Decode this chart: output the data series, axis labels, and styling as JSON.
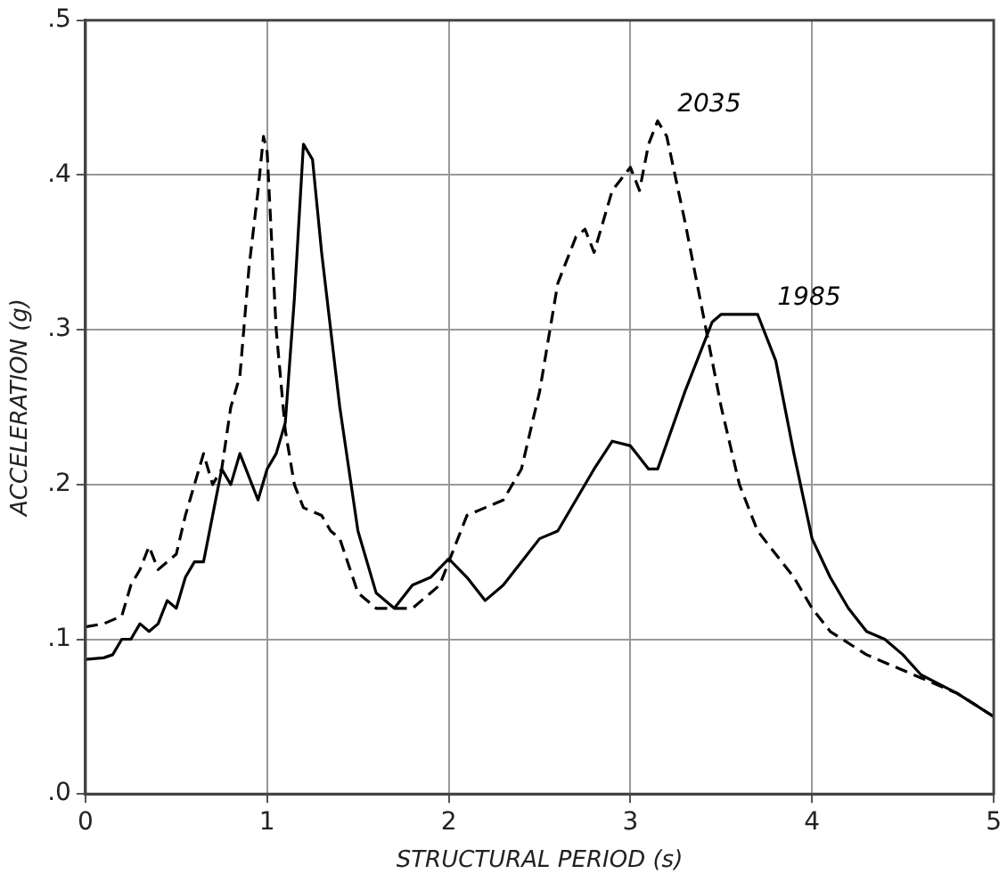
{
  "chart_data": {
    "type": "line",
    "xlabel": "STRUCTURAL PERIOD (s)",
    "ylabel": "ACCELERATION (g)",
    "xlim": [
      0,
      5
    ],
    "xticks": [
      0,
      1,
      2,
      3,
      4,
      5
    ],
    "ylim": [
      0,
      0.5
    ],
    "yticks": [
      {
        "value": 0,
        "label": ".0"
      },
      {
        "value": 0.1,
        "label": ".1"
      },
      {
        "value": 0.2,
        "label": ".2"
      },
      {
        "value": 0.3,
        "label": ".3"
      },
      {
        "value": 0.4,
        "label": ".4"
      },
      {
        "value": 0.5,
        "label": ".5"
      }
    ],
    "grid": true,
    "legend": false,
    "marker": "none",
    "series": [
      {
        "color": "#000000",
        "line_style": "solid",
        "x": [
          0,
          0.1,
          0.15,
          0.2,
          0.25,
          0.3,
          0.35,
          0.4,
          0.45,
          0.5,
          0.55,
          0.6,
          0.65,
          0.7,
          0.75,
          0.8,
          0.85,
          0.9,
          0.95,
          1.0,
          1.05,
          1.1,
          1.15,
          1.2,
          1.25,
          1.3,
          1.4,
          1.5,
          1.6,
          1.7,
          1.8,
          1.9,
          2.0,
          2.1,
          2.2,
          2.3,
          2.4,
          2.5,
          2.6,
          2.7,
          2.8,
          2.9,
          3.0,
          3.1,
          3.15,
          3.3,
          3.45,
          3.5,
          3.6,
          3.7,
          3.8,
          3.9,
          4.0,
          4.1,
          4.2,
          4.3,
          4.4,
          4.5,
          4.6,
          4.8,
          5.0
        ],
        "values": [
          0.087,
          0.088,
          0.09,
          0.1,
          0.1,
          0.11,
          0.105,
          0.11,
          0.125,
          0.12,
          0.14,
          0.15,
          0.15,
          0.18,
          0.21,
          0.2,
          0.22,
          0.205,
          0.19,
          0.21,
          0.22,
          0.24,
          0.32,
          0.42,
          0.41,
          0.35,
          0.25,
          0.17,
          0.13,
          0.12,
          0.135,
          0.14,
          0.152,
          0.14,
          0.125,
          0.135,
          0.15,
          0.165,
          0.17,
          0.19,
          0.21,
          0.228,
          0.225,
          0.21,
          0.21,
          0.26,
          0.305,
          0.31,
          0.31,
          0.31,
          0.28,
          0.22,
          0.165,
          0.14,
          0.12,
          0.105,
          0.1,
          0.09,
          0.077,
          0.065,
          0.05
        ]
      },
      {
        "color": "#000000",
        "line_style": "dashed",
        "x": [
          0,
          0.1,
          0.2,
          0.25,
          0.3,
          0.35,
          0.4,
          0.45,
          0.5,
          0.55,
          0.6,
          0.65,
          0.7,
          0.75,
          0.8,
          0.85,
          0.9,
          0.95,
          0.98,
          1.0,
          1.05,
          1.1,
          1.15,
          1.2,
          1.3,
          1.35,
          1.4,
          1.5,
          1.6,
          1.7,
          1.8,
          1.9,
          1.95,
          2.0,
          2.1,
          2.2,
          2.3,
          2.4,
          2.5,
          2.6,
          2.7,
          2.75,
          2.8,
          2.9,
          3.0,
          3.05,
          3.1,
          3.15,
          3.2,
          3.3,
          3.4,
          3.5,
          3.6,
          3.7,
          3.8,
          3.9,
          4.0,
          4.1,
          4.3,
          4.5,
          4.8,
          5.0
        ],
        "values": [
          0.108,
          0.11,
          0.115,
          0.135,
          0.145,
          0.16,
          0.145,
          0.15,
          0.155,
          0.18,
          0.2,
          0.22,
          0.2,
          0.21,
          0.25,
          0.27,
          0.34,
          0.39,
          0.425,
          0.415,
          0.3,
          0.235,
          0.2,
          0.185,
          0.18,
          0.17,
          0.165,
          0.13,
          0.12,
          0.12,
          0.12,
          0.13,
          0.135,
          0.15,
          0.18,
          0.185,
          0.19,
          0.21,
          0.26,
          0.33,
          0.36,
          0.365,
          0.35,
          0.39,
          0.405,
          0.39,
          0.42,
          0.435,
          0.425,
          0.37,
          0.31,
          0.25,
          0.2,
          0.17,
          0.155,
          0.14,
          0.12,
          0.105,
          0.09,
          0.08,
          0.065,
          0.05
        ]
      }
    ],
    "annotations": [
      {
        "text": "2035",
        "x": 3.2,
        "y": 0.435
      },
      {
        "text": "1985",
        "x": 3.75,
        "y": 0.31
      }
    ]
  }
}
